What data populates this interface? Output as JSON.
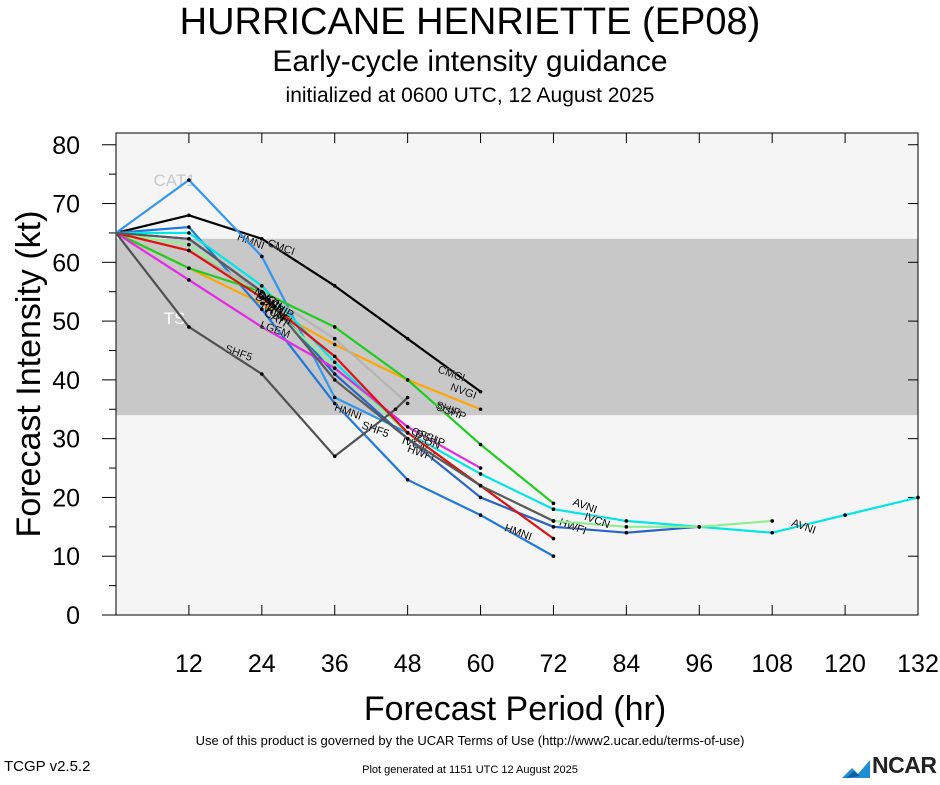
{
  "header": {
    "title": "HURRICANE HENRIETTE (EP08)",
    "subtitle": "Early-cycle intensity guidance",
    "initialized": "initialized at 0600 UTC, 12 August 2025"
  },
  "footer": {
    "terms": "Use of this product is governed by the UCAR Terms of Use (http://www2.ucar.edu/terms-of-use)",
    "generated": "Plot generated at 1151 UTC   12 August 2025",
    "version": "TCGP v2.5.2",
    "logo_text": "NCAR"
  },
  "chart_data": {
    "type": "line",
    "xlabel": "Forecast Period (hr)",
    "ylabel": "Forecast Intensity (kt)",
    "xlim": [
      0,
      132
    ],
    "ylim": [
      0,
      82
    ],
    "xticks": [
      12,
      24,
      36,
      48,
      60,
      72,
      84,
      96,
      108,
      120,
      132
    ],
    "yticks": [
      0,
      10,
      20,
      30,
      40,
      50,
      60,
      70,
      80
    ],
    "bands": [
      {
        "name": "TS",
        "from": 34,
        "to": 64,
        "color": "#c8c8c8",
        "label_x": 8,
        "label_y": 49.5,
        "label_color": "#ffffff"
      },
      {
        "name": "CAT1",
        "from": 64,
        "to": 83,
        "color": "#f5f5f5",
        "label_x": 8,
        "label_y": 73,
        "label_color": "#c8c8c8"
      }
    ],
    "series": [
      {
        "name": "CMCI",
        "color": "#000000",
        "x": [
          0,
          12,
          24,
          36,
          48,
          60
        ],
        "y": [
          65,
          68,
          64,
          56,
          47,
          38
        ],
        "labels": [
          {
            "x": 27,
            "y": 62
          },
          {
            "x": 55,
            "y": 40.5
          }
        ]
      },
      {
        "name": "NVGI",
        "color": "#ffa500",
        "x": [
          0,
          12,
          24,
          36,
          48,
          60
        ],
        "y": [
          65,
          59,
          53,
          46,
          40,
          35
        ],
        "labels": [
          {
            "x": 57,
            "y": 37.5
          }
        ]
      },
      {
        "name": "HMNI",
        "color": "#1e78dc",
        "x": [
          0,
          12,
          24,
          36,
          48,
          60,
          72
        ],
        "y": [
          65,
          66,
          52,
          36,
          23,
          17,
          10
        ],
        "labels": [
          {
            "x": 22,
            "y": 63
          },
          {
            "x": 38,
            "y": 34
          },
          {
            "x": 66,
            "y": 13.5
          }
        ]
      },
      {
        "name": "CATI",
        "color": "#3296f0",
        "x": [
          0,
          12,
          24,
          36,
          48
        ],
        "y": [
          65,
          74,
          61,
          37,
          31
        ],
        "labels": []
      },
      {
        "name": "AVNI",
        "color": "#00e5e5",
        "x": [
          0,
          12,
          24,
          36,
          48,
          60,
          72,
          84,
          96,
          108,
          120,
          132
        ],
        "y": [
          65,
          65,
          56,
          43,
          31,
          24,
          18,
          16,
          15,
          14,
          17,
          20
        ],
        "labels": [
          {
            "x": 77,
            "y": 18
          },
          {
            "x": 113,
            "y": 14.5
          }
        ]
      },
      {
        "name": "HWFI",
        "color": "#2864c8",
        "x": [
          0,
          12,
          24,
          36,
          48,
          60,
          72,
          84,
          96
        ],
        "y": [
          65,
          64,
          55,
          41,
          30,
          20,
          15,
          14,
          15
        ],
        "labels": [
          {
            "x": 50,
            "y": 27
          },
          {
            "x": 75,
            "y": 14.5
          }
        ]
      },
      {
        "name": "IVCN",
        "color": "#90ee90",
        "x": [
          0,
          12,
          24,
          36,
          48,
          60,
          72,
          84,
          96,
          108
        ],
        "y": [
          65,
          63,
          54,
          42,
          31,
          22,
          16,
          15,
          15,
          16
        ],
        "labels": [
          {
            "x": 49,
            "y": 28.5
          },
          {
            "x": 79,
            "y": 15.5
          }
        ]
      },
      {
        "name": "DSHP",
        "color": "#20cc20",
        "x": [
          0,
          12,
          24,
          36,
          48,
          60,
          72
        ],
        "y": [
          65,
          59,
          55,
          49,
          40,
          29,
          19
        ],
        "labels": [
          {
            "x": 55,
            "y": 34
          }
        ]
      },
      {
        "name": "SHIP",
        "color": "#b4b4b4",
        "x": [
          0,
          12,
          24,
          36,
          48
        ],
        "y": [
          65,
          62,
          55,
          47,
          36
        ],
        "labels": [
          {
            "x": 54.5,
            "y": 34.5
          }
        ]
      },
      {
        "name": "LGEM",
        "color": "#e628e6",
        "x": [
          0,
          12,
          24,
          36,
          48,
          60
        ],
        "y": [
          65,
          57,
          49,
          42,
          32,
          25
        ],
        "labels": [
          {
            "x": 26,
            "y": 48
          }
        ]
      },
      {
        "name": "OFCI",
        "color": "#e01010",
        "x": [
          0,
          12,
          24,
          36,
          48,
          60,
          72
        ],
        "y": [
          65,
          62,
          54,
          44,
          31,
          22,
          13
        ],
        "labels": [
          {
            "x": 50.5,
            "y": 30
          }
        ]
      },
      {
        "name": "ICON",
        "color": "#5a5a5a",
        "x": [
          0,
          12,
          24,
          36,
          48,
          60,
          72
        ],
        "y": [
          65,
          64,
          55,
          40,
          30,
          22,
          16
        ],
        "labels": [
          {
            "x": 51,
            "y": 29
          }
        ]
      },
      {
        "name": "SHF5",
        "color": "#505050",
        "x": [
          0,
          12,
          24,
          36,
          46,
          48
        ],
        "y": [
          65,
          49,
          41,
          27,
          35,
          37
        ],
        "labels": [
          {
            "x": 20,
            "y": 44
          },
          {
            "x": 42.5,
            "y": 31
          }
        ]
      },
      {
        "name": "DSHP",
        "color": "#505050",
        "x": [],
        "y": [],
        "labels": [
          {
            "x": 51.5,
            "y": 29.5
          }
        ]
      }
    ],
    "cluster_labels": [
      {
        "text": "AVNI",
        "x": 26,
        "y": 52
      },
      {
        "text": "SHIP",
        "x": 27,
        "y": 51.5
      },
      {
        "text": "IVCN",
        "x": 25.5,
        "y": 51
      },
      {
        "text": "OFCI",
        "x": 25,
        "y": 53
      },
      {
        "text": "HWFI",
        "x": 26.5,
        "y": 50.5
      },
      {
        "text": "DSHP",
        "x": 25,
        "y": 52.5
      },
      {
        "text": "NVGI",
        "x": 24.5,
        "y": 53.5
      },
      {
        "text": "CATI",
        "x": 26,
        "y": 50
      }
    ],
    "grid": false,
    "legend": "none (inline labels)"
  }
}
